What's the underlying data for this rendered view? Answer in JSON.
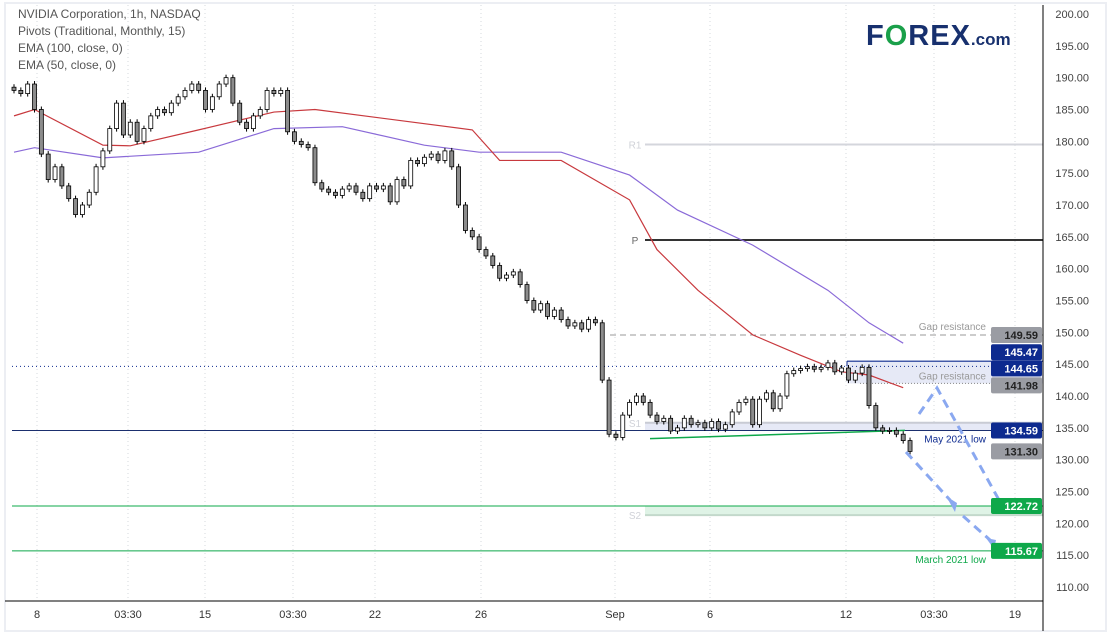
{
  "legend": {
    "symbol": "NVIDIA Corporation, 1h, NASDAQ",
    "pivots": "Pivots (Traditional, Monthly, 15)",
    "ema100": "EMA (100, close, 0)",
    "ema50": "EMA (50, close, 0)"
  },
  "logo": {
    "text": "FOREX.com",
    "part1": "F",
    "part2": "O",
    "part3": "REX",
    "part4": ".com"
  },
  "colors": {
    "ema50": "#c8393e",
    "ema100": "#8a6ad8",
    "navy": "#0d2a8f",
    "green": "#0ea84a",
    "gray_tag": "#9a9ca3",
    "arrow": "#8aa8f0",
    "up_candle": "#ffffff",
    "down_candle": "#8c8c8c"
  },
  "chart_data": {
    "type": "candlestick",
    "title": "NVIDIA Corporation, 1h, NASDAQ",
    "ylim": [
      108,
      201
    ],
    "y_ticks": [
      200,
      195,
      190,
      185,
      180,
      175,
      170,
      165,
      160,
      155,
      150,
      145,
      140,
      135,
      130,
      125,
      120,
      115,
      110
    ],
    "y_tick_labels": [
      "200.00",
      "195.00",
      "190.00",
      "185.00",
      "180.00",
      "175.00",
      "170.00",
      "165.00",
      "160.00",
      "155.00",
      "150.00",
      "145.00",
      "140.00",
      "135.00",
      "130.00",
      "125.00",
      "120.00",
      "115.00",
      "110.00"
    ],
    "x_tick_labels": [
      "8",
      "03:30",
      "15",
      "03:30",
      "22",
      "26",
      "Sep",
      "6",
      "12",
      "03:30",
      "19"
    ],
    "closes": [
      188,
      187.5,
      189,
      185,
      178,
      174,
      176,
      173,
      171,
      168.5,
      170,
      172,
      176,
      178.5,
      182,
      186,
      181,
      183,
      180,
      182,
      184,
      185,
      184.5,
      186,
      187,
      188,
      189,
      188,
      185,
      187,
      189,
      190,
      186,
      183,
      182,
      184,
      185,
      188,
      187.5,
      188,
      181.5,
      180,
      179.5,
      179,
      173.5,
      172.5,
      172,
      171.5,
      172.5,
      173,
      172,
      171,
      173,
      172.5,
      173,
      170.5,
      174,
      173,
      177,
      176.5,
      177.5,
      178,
      177,
      178.5,
      176,
      170,
      166,
      165,
      163,
      162,
      160.5,
      158.5,
      159,
      159.5,
      157.5,
      155,
      153.5,
      154.5,
      152.5,
      153.5,
      152,
      151,
      151.5,
      150.5,
      152,
      151.5,
      142.5,
      134,
      133.5,
      137,
      139,
      140,
      139,
      137,
      136,
      136.5,
      134.5,
      135,
      136.5,
      135.5,
      135.8,
      135,
      136,
      134.8,
      135.5,
      137.5,
      139,
      139.5,
      135.5,
      139.5,
      140.5,
      138,
      140,
      143.5,
      144,
      144.3,
      144.6,
      144.2,
      144.5,
      145.2,
      143.8,
      144.4,
      142.5,
      143.6,
      144.5,
      138.5,
      135,
      134.5,
      134.6,
      134,
      133,
      131.3
    ],
    "ema50": {
      "bar": [
        0,
        3,
        13,
        17,
        27,
        38,
        44,
        67,
        71,
        80,
        90,
        94,
        100,
        108,
        115,
        121,
        125,
        130
      ],
      "value": [
        184,
        185,
        179.4,
        179.3,
        181.8,
        184.6,
        185,
        181.8,
        177,
        177,
        170.8,
        163,
        156.6,
        149.6,
        146.4,
        143.8,
        143.3,
        141.3
      ]
    },
    "ema100": {
      "bar": [
        0,
        3,
        13,
        27,
        38,
        48,
        60,
        68,
        80,
        90,
        97,
        108,
        119,
        125,
        130
      ],
      "value": [
        178.3,
        179,
        177.4,
        178.3,
        182,
        182.3,
        179.4,
        178.3,
        178.3,
        174.7,
        169.2,
        163.7,
        156.6,
        151.5,
        148.3
      ]
    },
    "pivots": {
      "R1": 179.5,
      "P": 164.5,
      "S1": 135.8,
      "S2": 121.3,
      "labels": [
        "R1",
        "P",
        "S1",
        "S2"
      ]
    },
    "levels": [
      {
        "price": 149.59,
        "label": "Gap resistance",
        "tag": "149.59",
        "style": "dashed-gray"
      },
      {
        "price": 145.47,
        "tag": "145.47",
        "style": "navy-box-top"
      },
      {
        "price": 144.65,
        "tag": "144.65",
        "style": "navy-dotted"
      },
      {
        "price": 141.98,
        "label": "Gap resistance",
        "tag": "141.98",
        "style": "box-bottom"
      },
      {
        "price": 134.59,
        "label": "May 2021 low",
        "tag": "134.59",
        "style": "navy-line"
      },
      {
        "price": 131.3,
        "tag": "131.30",
        "style": "last-price"
      },
      {
        "price": 122.72,
        "tag": "122.72",
        "style": "green-line"
      },
      {
        "price": 115.67,
        "label": "March 2021 low",
        "tag": "115.67",
        "style": "green-line"
      }
    ],
    "trendline": {
      "from_price": 133.3,
      "to_price": 134.6
    }
  }
}
